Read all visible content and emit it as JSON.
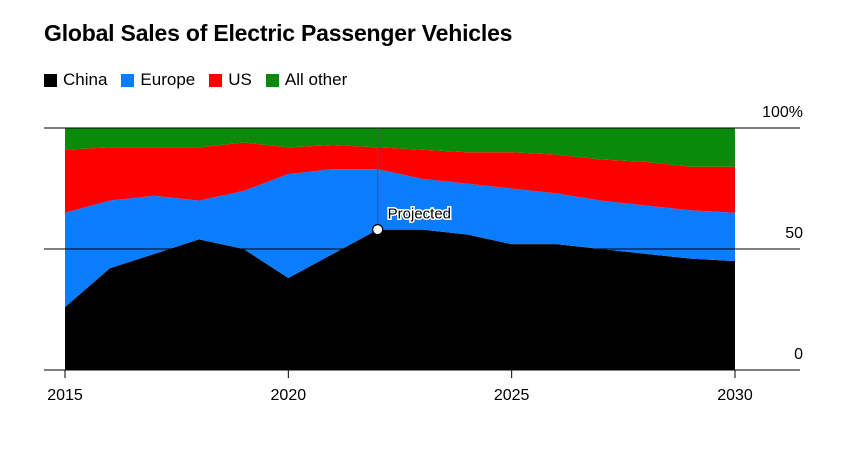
{
  "chart_data": {
    "type": "area",
    "stacked": "percent",
    "title": "Global Sales of Electric Passenger Vehicles",
    "x": [
      2015,
      2016,
      2017,
      2018,
      2019,
      2020,
      2021,
      2022,
      2023,
      2024,
      2025,
      2026,
      2027,
      2028,
      2029,
      2030
    ],
    "series": [
      {
        "name": "China",
        "color": "#000000",
        "values": [
          26,
          42,
          48,
          54,
          50,
          38,
          48,
          58,
          58,
          56,
          52,
          52,
          50,
          48,
          46,
          45
        ]
      },
      {
        "name": "Europe",
        "color": "#0a7dff",
        "values": [
          39,
          28,
          24,
          16,
          24,
          43,
          35,
          25,
          21,
          21,
          23,
          21,
          20,
          20,
          20,
          20
        ]
      },
      {
        "name": "US",
        "color": "#ff0000",
        "values": [
          26,
          22,
          20,
          22,
          20,
          11,
          10,
          9,
          12,
          13,
          15,
          16,
          17,
          18,
          18,
          19
        ]
      },
      {
        "name": "All other",
        "color": "#0a8a0a",
        "values": [
          9,
          8,
          8,
          8,
          6,
          8,
          7,
          8,
          9,
          10,
          10,
          11,
          13,
          14,
          16,
          16
        ]
      }
    ],
    "x_tick_labels": [
      "2015",
      "2020",
      "2025",
      "2030"
    ],
    "y_tick_labels": [
      "0",
      "50",
      "100%"
    ],
    "ylim": [
      0,
      100
    ],
    "xlim": [
      2015,
      2030
    ],
    "annotation": {
      "label": "Projected",
      "x": 2022,
      "y": 58
    },
    "legend_position": "top-left"
  }
}
